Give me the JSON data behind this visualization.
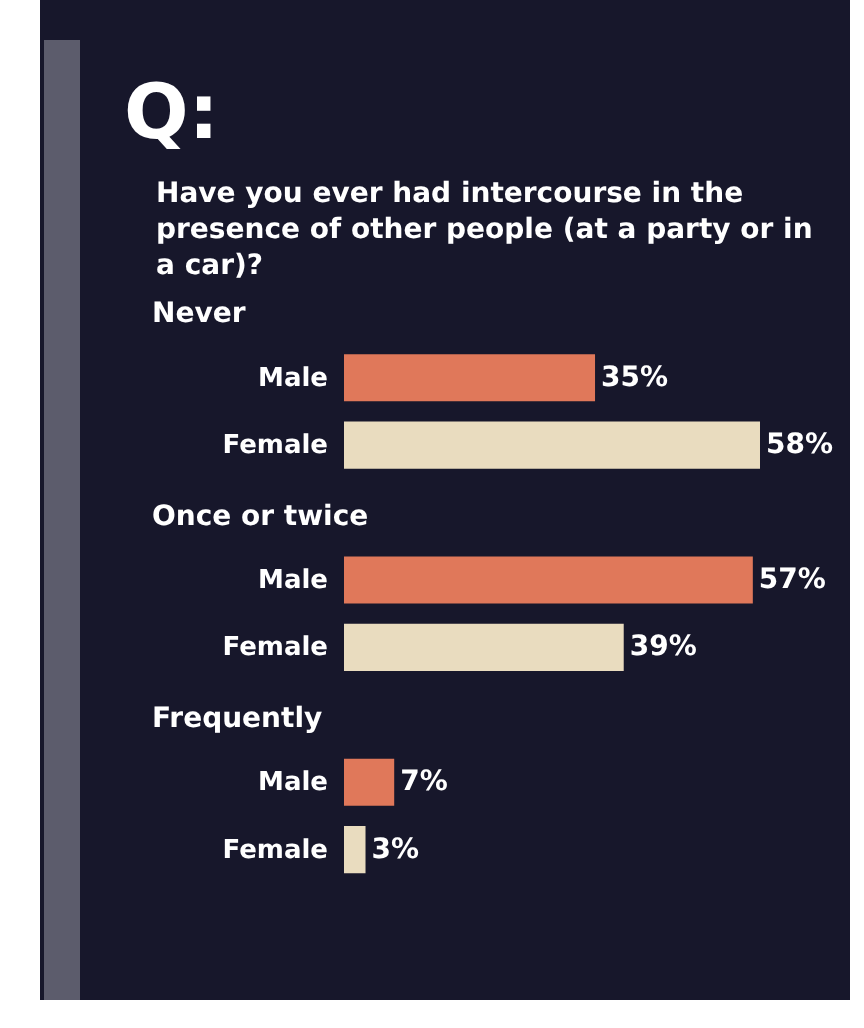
{
  "chart_data": {
    "type": "bar",
    "orientation": "horizontal",
    "title": "Q:",
    "subtitle": "Have you ever had intercourse in the presence of other people (at a party or in a car)?",
    "categories": [
      "Never",
      "Once or twice",
      "Frequently"
    ],
    "series": [
      {
        "name": "Male",
        "color": "#e0785a",
        "values": [
          35,
          57,
          7
        ],
        "value_labels": [
          "35%",
          "57%",
          "7%"
        ]
      },
      {
        "name": "Female",
        "color": "#e9dcbf",
        "values": [
          58,
          39,
          3
        ],
        "value_labels": [
          "58%",
          "39%",
          "3%"
        ]
      }
    ]
  }
}
